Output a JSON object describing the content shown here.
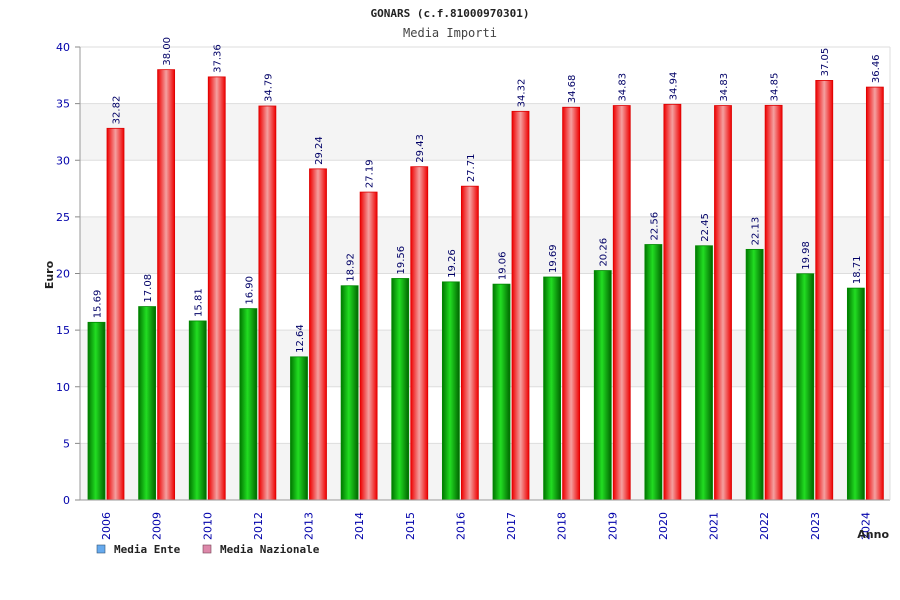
{
  "chart_data": {
    "type": "bar",
    "title": "GONARS (c.f.81000970301)",
    "subtitle": "Media Importi",
    "xlabel": "Anno",
    "ylabel": "Euro",
    "ylim": [
      0,
      40
    ],
    "yticks": [
      0,
      5,
      10,
      15,
      20,
      25,
      30,
      35,
      40
    ],
    "grid": true,
    "legend_position": "bottom-left",
    "categories": [
      "2006",
      "2009",
      "2010",
      "2012",
      "2013",
      "2014",
      "2015",
      "2016",
      "2017",
      "2018",
      "2019",
      "2020",
      "2021",
      "2022",
      "2023",
      "2024"
    ],
    "series": [
      {
        "name": "Media Ente",
        "color": "#00bb00",
        "legend_color": "#66aaee",
        "values": [
          15.69,
          17.08,
          15.81,
          16.9,
          12.64,
          18.92,
          19.56,
          19.26,
          19.06,
          19.69,
          20.26,
          22.56,
          22.45,
          22.13,
          19.98,
          18.71
        ],
        "labels": [
          "15.69",
          "17.08",
          "15.81",
          "16.90",
          "12.64",
          "18.92",
          "19.56",
          "19.26",
          "19.06",
          "19.69",
          "20.26",
          "22.56",
          "22.45",
          "22.13",
          "19.98",
          "18.71"
        ]
      },
      {
        "name": "Media Nazionale",
        "color": "#ee1111",
        "legend_color": "#dd88aa",
        "values": [
          32.82,
          38.0,
          37.36,
          34.79,
          29.24,
          27.19,
          29.43,
          27.71,
          34.32,
          34.68,
          34.83,
          34.94,
          34.83,
          34.85,
          37.05,
          36.46
        ],
        "labels": [
          "32.82",
          "38.00",
          "37.36",
          "34.79",
          "29.24",
          "27.19",
          "29.43",
          "27.71",
          "34.32",
          "34.68",
          "34.83",
          "34.94",
          "34.83",
          "34.85",
          "37.05",
          "36.46"
        ]
      }
    ]
  }
}
